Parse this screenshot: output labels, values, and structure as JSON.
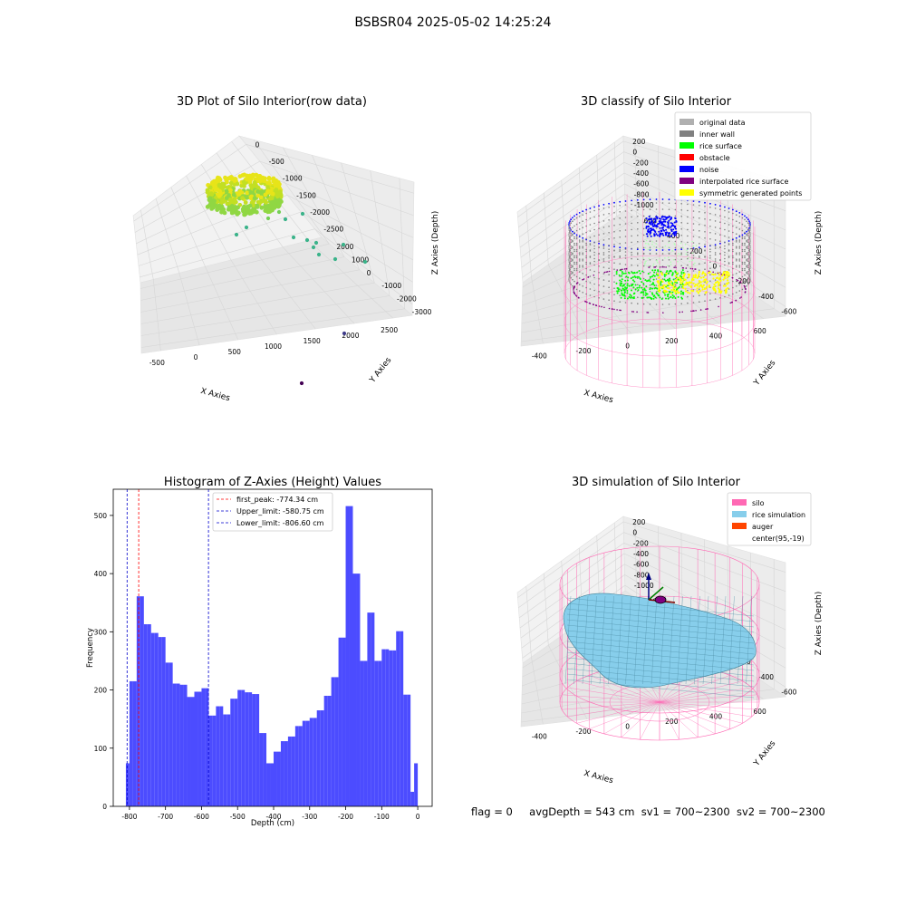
{
  "suptitle": "BSBSR04 2025-05-02 14:25:24",
  "footer": {
    "flag": "flag = 0",
    "avg_depth": "avgDepth = 543 cm",
    "sv1": "sv1 = 700~2300",
    "sv2": "sv2 = 700~2300"
  },
  "chart_data": [
    {
      "type": "scatter",
      "title": "3D Plot of Silo Interior(row data)",
      "xlabel": "X Axies",
      "ylabel": "Y Axies",
      "zlabel": "Z Axies (Depth)",
      "x_ticks": [
        "-500",
        "0",
        "500",
        "1000",
        "1500",
        "2000",
        "2500"
      ],
      "y_ticks": [
        "-3000",
        "-2000",
        "-1000",
        "0",
        "1000",
        "2000"
      ],
      "z_ticks": [
        "0",
        "-500",
        "-1000",
        "-1500",
        "-2000",
        "-2500"
      ],
      "colormap": "viridis",
      "colors": {
        "dense_cluster": "#c8e020",
        "outlier_teal": "#3bb38a",
        "outlier_purple": "#3f3c8a",
        "outlier_dark": "#440154"
      }
    },
    {
      "type": "scatter",
      "title": "3D classify of Silo Interior",
      "xlabel": "X Axies",
      "ylabel": "Y Axies",
      "zlabel": "Z Axies (Depth)",
      "x_ticks": [
        "-400",
        "-200",
        "0",
        "200",
        "400",
        "600"
      ],
      "y_ticks": [
        "-600",
        "-400",
        "-200",
        "0",
        "200",
        "400",
        "600"
      ],
      "z_ticks": [
        "200",
        "0",
        "-200",
        "-400",
        "-600",
        "-800",
        "-1000"
      ],
      "legend": [
        {
          "label": "original data",
          "color": "#b0b0b0"
        },
        {
          "label": "inner wall",
          "color": "#808080"
        },
        {
          "label": "rice surface",
          "color": "#00ff00"
        },
        {
          "label": "obstacle",
          "color": "#ff0000"
        },
        {
          "label": "noise",
          "color": "#0000ff"
        },
        {
          "label": "interpolated rice surface",
          "color": "#800080"
        },
        {
          "label": "symmetric generated points",
          "color": "#ffff00"
        }
      ],
      "legend_position": "top-right"
    },
    {
      "type": "bar",
      "title": "Histogram of Z-Axies (Height) Values",
      "xlabel": "Depth (cm)",
      "ylabel": "Frequency",
      "bar_color": "#4c4cff",
      "bin_width": 10,
      "bin_left_edges": [
        -810,
        -800,
        -790,
        -780,
        -770,
        -760,
        -750,
        -740,
        -730,
        -720,
        -710,
        -700,
        -690,
        -680,
        -670,
        -660,
        -650,
        -640,
        -630,
        -620,
        -610,
        -600,
        -590,
        -580,
        -570,
        -560,
        -550,
        -540,
        -530,
        -520,
        -510,
        -500,
        -490,
        -480,
        -470,
        -460,
        -450,
        -440,
        -430,
        -420,
        -410,
        -400,
        -390,
        -380,
        -370,
        -360,
        -350,
        -340,
        -330,
        -320,
        -310,
        -300,
        -290,
        -280,
        -270,
        -260,
        -250,
        -240,
        -230,
        -220,
        -210,
        -200,
        -190,
        -180,
        -170,
        -160,
        -150,
        -140,
        -130,
        -120,
        -110,
        -100,
        -90,
        -80,
        -70,
        -60,
        -50,
        -40,
        -30,
        -20,
        -10
      ],
      "values": [
        74,
        215,
        215,
        361,
        361,
        313,
        313,
        298,
        298,
        291,
        291,
        247,
        247,
        211,
        211,
        209,
        209,
        188,
        188,
        197,
        197,
        203,
        203,
        156,
        156,
        172,
        172,
        158,
        158,
        185,
        185,
        200,
        200,
        196,
        196,
        193,
        193,
        126,
        126,
        74,
        74,
        94,
        94,
        112,
        112,
        120,
        120,
        138,
        138,
        147,
        147,
        152,
        152,
        165,
        165,
        190,
        190,
        222,
        222,
        290,
        290,
        516,
        516,
        400,
        400,
        250,
        250,
        333,
        333,
        250,
        250,
        270,
        270,
        268,
        268,
        301,
        301,
        192,
        192,
        25,
        74
      ],
      "xlim": [
        -845,
        40
      ],
      "ylim": [
        0,
        545
      ],
      "x_ticks": [
        -800,
        -700,
        -600,
        -500,
        -400,
        -300,
        -200,
        -100,
        0
      ],
      "y_ticks": [
        0,
        100,
        200,
        300,
        400,
        500
      ],
      "vlines": [
        {
          "label": "first_peak: -774.34 cm",
          "x": -774.34,
          "color": "#ff0000"
        },
        {
          "label": "Upper_limit: -580.75 cm",
          "x": -580.75,
          "color": "#0000cc"
        },
        {
          "label": "Lower_limit: -806.60 cm",
          "x": -806.6,
          "color": "#0000cc"
        }
      ],
      "legend_position": "top-center"
    },
    {
      "type": "scatter",
      "title": "3D simulation of Silo Interior",
      "xlabel": "X Axies",
      "ylabel": "Y Axies",
      "zlabel": "Z Axies (Depth)",
      "x_ticks": [
        "-400",
        "-200",
        "0",
        "200",
        "400",
        "600"
      ],
      "y_ticks": [
        "-600",
        "-400",
        "-200",
        "0",
        "200",
        "400",
        "600"
      ],
      "z_ticks": [
        "200",
        "0",
        "-200",
        "-400",
        "-600",
        "-800",
        "-1000"
      ],
      "legend": [
        {
          "label": "silo",
          "color": "#ff69b4"
        },
        {
          "label": "rice simulation",
          "color": "#87ceeb"
        },
        {
          "label": "auger",
          "color": "#ff4500"
        },
        {
          "label": "center(95,-19)",
          "color": ""
        }
      ],
      "legend_position": "top-right"
    }
  ]
}
